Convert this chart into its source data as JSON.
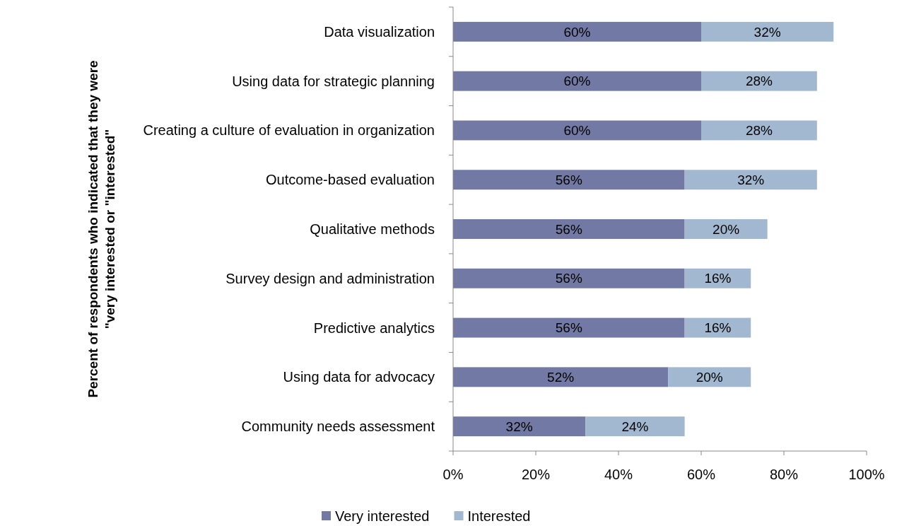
{
  "chart_data": {
    "type": "bar",
    "orientation": "horizontal",
    "stacked": true,
    "ylabel": "Percent of respondents who indicated that they were\n\"very interested or \"interested\"",
    "categories": [
      "Data visualization",
      "Using data for strategic planning",
      "Creating a culture of evaluation in organization",
      "Outcome-based evaluation",
      "Qualitative methods",
      "Survey design and administration",
      "Predictive analytics",
      "Using data for advocacy",
      "Community needs assessment"
    ],
    "series": [
      {
        "name": "Very interested",
        "color": "#7179a4",
        "values": [
          60,
          60,
          60,
          56,
          56,
          56,
          56,
          52,
          32
        ],
        "value_labels": [
          "60%",
          "60%",
          "60%",
          "56%",
          "56%",
          "56%",
          "56%",
          "52%",
          "32%"
        ]
      },
      {
        "name": "Interested",
        "color": "#a1b8d0",
        "values": [
          32,
          28,
          28,
          32,
          20,
          16,
          16,
          20,
          24
        ],
        "value_labels": [
          "32%",
          "28%",
          "28%",
          "32%",
          "20%",
          "16%",
          "16%",
          "20%",
          "24%"
        ]
      }
    ],
    "xlim": [
      0,
      100
    ],
    "xticks": [
      {
        "value": 0,
        "label": "0%"
      },
      {
        "value": 20,
        "label": "20%"
      },
      {
        "value": 40,
        "label": "40%"
      },
      {
        "value": 60,
        "label": "60%"
      },
      {
        "value": 80,
        "label": "80%"
      },
      {
        "value": 100,
        "label": "100%"
      }
    ],
    "legend": "bottom",
    "grid": false
  }
}
